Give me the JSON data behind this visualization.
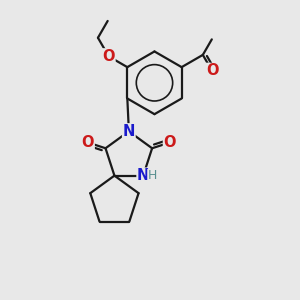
{
  "bg_color": "#e8e8e8",
  "bond_color": "#1a1a1a",
  "N_color": "#1a1acc",
  "O_color": "#cc1a1a",
  "NH_color": "#5a9090",
  "line_width": 1.6,
  "font_size_atom": 10.5,
  "fig_size": [
    3.0,
    3.0
  ],
  "dpi": 100,
  "xlim": [
    0,
    10
  ],
  "ylim": [
    0,
    10
  ]
}
